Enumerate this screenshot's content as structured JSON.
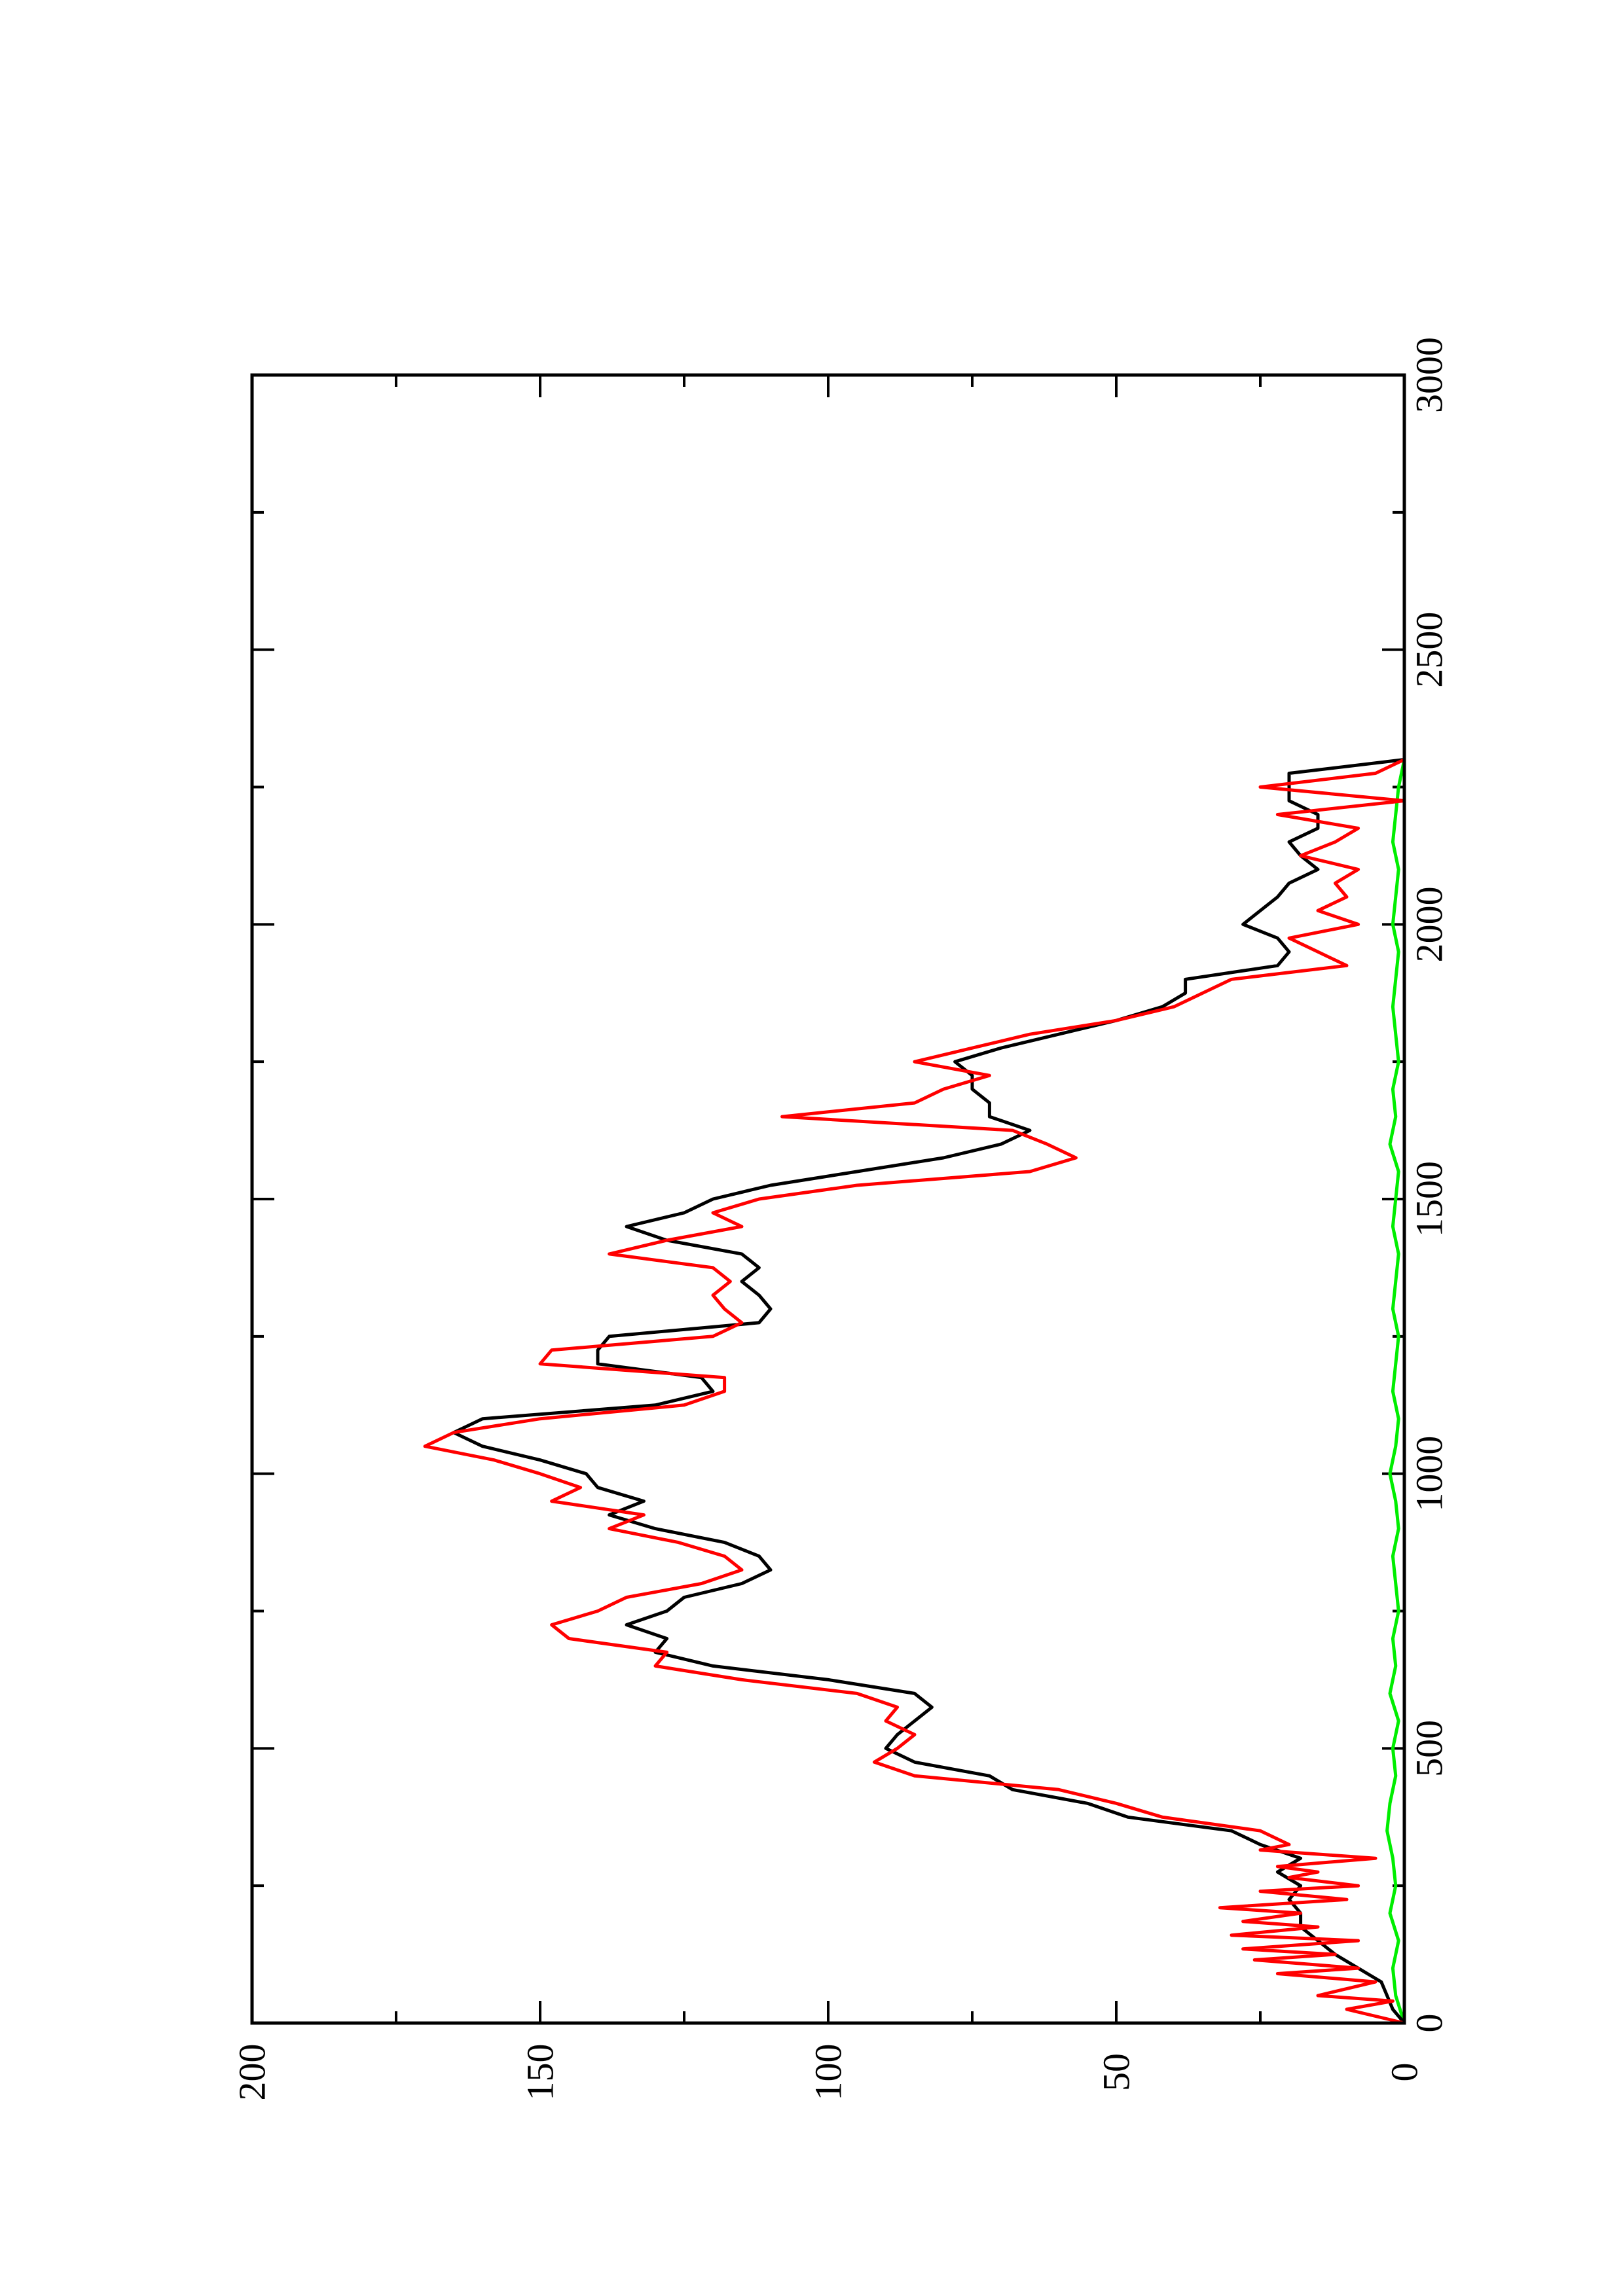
{
  "chart_data": {
    "type": "line",
    "orientation": "rotated-90-clockwise",
    "title": "",
    "xlabel": "",
    "ylabel": "",
    "xlim": [
      0,
      3000
    ],
    "ylim": [
      0,
      200
    ],
    "x_ticks_major": [
      0,
      500,
      1000,
      1500,
      2000,
      2500,
      3000
    ],
    "x_ticks_minor": [
      250,
      750,
      1250,
      1750,
      2250,
      2750
    ],
    "y_ticks_major": [
      0,
      50,
      100,
      150,
      200
    ],
    "y_ticks_minor": [
      25,
      75,
      125,
      175
    ],
    "grid": false,
    "legend": "none",
    "series": [
      {
        "color": "#000000",
        "x": [
          0,
          25,
          50,
          75,
          100,
          125,
          150,
          175,
          200,
          225,
          250,
          275,
          300,
          325,
          350,
          375,
          400,
          425,
          450,
          475,
          500,
          525,
          550,
          575,
          600,
          625,
          650,
          675,
          700,
          725,
          750,
          775,
          800,
          825,
          850,
          875,
          900,
          925,
          950,
          975,
          1000,
          1025,
          1050,
          1075,
          1100,
          1125,
          1150,
          1175,
          1200,
          1225,
          1250,
          1275,
          1300,
          1325,
          1350,
          1375,
          1400,
          1425,
          1450,
          1475,
          1500,
          1525,
          1550,
          1575,
          1600,
          1625,
          1650,
          1675,
          1700,
          1725,
          1750,
          1775,
          1800,
          1825,
          1850,
          1875,
          1900,
          1925,
          1950,
          1975,
          2000,
          2025,
          2050,
          2075,
          2100,
          2125,
          2150,
          2175,
          2200,
          2225,
          2250,
          2275,
          2300
        ],
        "y": [
          0,
          2,
          3,
          4,
          8,
          12,
          15,
          18,
          18,
          20,
          18,
          22,
          18,
          25,
          30,
          48,
          55,
          68,
          72,
          85,
          90,
          88,
          85,
          82,
          85,
          100,
          120,
          130,
          128,
          135,
          128,
          125,
          115,
          110,
          112,
          118,
          130,
          138,
          132,
          140,
          142,
          150,
          160,
          165,
          160,
          130,
          120,
          122,
          140,
          140,
          138,
          112,
          110,
          112,
          115,
          112,
          115,
          128,
          135,
          125,
          120,
          110,
          95,
          80,
          70,
          65,
          72,
          72,
          75,
          75,
          78,
          70,
          60,
          50,
          42,
          38,
          38,
          22,
          20,
          22,
          28,
          25,
          22,
          20,
          15,
          18,
          20,
          15,
          15,
          20,
          20,
          20,
          0
        ]
      },
      {
        "color": "#ff0000",
        "x": [
          0,
          25,
          40,
          50,
          75,
          90,
          100,
          115,
          125,
          135,
          150,
          160,
          175,
          185,
          200,
          210,
          225,
          240,
          250,
          265,
          275,
          285,
          300,
          315,
          325,
          350,
          375,
          400,
          425,
          450,
          475,
          500,
          525,
          550,
          575,
          600,
          625,
          650,
          675,
          700,
          725,
          750,
          775,
          800,
          825,
          850,
          875,
          900,
          925,
          950,
          975,
          1000,
          1025,
          1050,
          1075,
          1100,
          1125,
          1150,
          1175,
          1200,
          1225,
          1250,
          1275,
          1300,
          1325,
          1350,
          1375,
          1400,
          1425,
          1450,
          1475,
          1500,
          1525,
          1550,
          1575,
          1600,
          1625,
          1650,
          1675,
          1700,
          1725,
          1750,
          1775,
          1800,
          1825,
          1850,
          1875,
          1900,
          1925,
          1950,
          1975,
          2000,
          2025,
          2050,
          2075,
          2100,
          2125,
          2150,
          2175,
          2200,
          2225,
          2250,
          2275,
          2300
        ],
        "y": [
          0,
          10,
          2,
          15,
          5,
          22,
          8,
          26,
          12,
          28,
          8,
          30,
          15,
          28,
          18,
          32,
          10,
          25,
          8,
          20,
          15,
          22,
          5,
          25,
          20,
          25,
          42,
          50,
          60,
          85,
          92,
          88,
          85,
          90,
          88,
          95,
          115,
          130,
          128,
          145,
          148,
          140,
          135,
          122,
          115,
          118,
          126,
          138,
          132,
          148,
          143,
          150,
          158,
          170,
          165,
          150,
          125,
          118,
          118,
          150,
          148,
          120,
          115,
          118,
          120,
          117,
          120,
          138,
          128,
          115,
          120,
          112,
          95,
          65,
          57,
          62,
          68,
          108,
          85,
          80,
          72,
          85,
          75,
          65,
          50,
          40,
          35,
          30,
          10,
          15,
          20,
          8,
          15,
          10,
          12,
          8,
          18,
          12,
          8,
          22,
          0,
          25,
          5,
          0
        ]
      },
      {
        "color": "#00ee00",
        "x": [
          0,
          50,
          100,
          150,
          200,
          250,
          300,
          350,
          400,
          450,
          500,
          550,
          600,
          650,
          700,
          750,
          800,
          850,
          900,
          950,
          1000,
          1050,
          1100,
          1150,
          1200,
          1250,
          1300,
          1350,
          1400,
          1450,
          1500,
          1550,
          1600,
          1650,
          1700,
          1750,
          1800,
          1850,
          1900,
          1950,
          2000,
          2050,
          2100,
          2150,
          2200,
          2250,
          2300
        ],
        "y": [
          0,
          1.5,
          2,
          1,
          2.5,
          1.5,
          2,
          3,
          2.5,
          1.5,
          2,
          1,
          2.5,
          1.5,
          2,
          1,
          1.5,
          2,
          1,
          1.5,
          2.5,
          1.5,
          1,
          2,
          1.5,
          1,
          2,
          1.5,
          1,
          2,
          1.5,
          1,
          2.5,
          1.5,
          2,
          1,
          1.5,
          2,
          1.5,
          1,
          2,
          1.5,
          1,
          2,
          1.5,
          1,
          0
        ]
      }
    ]
  }
}
